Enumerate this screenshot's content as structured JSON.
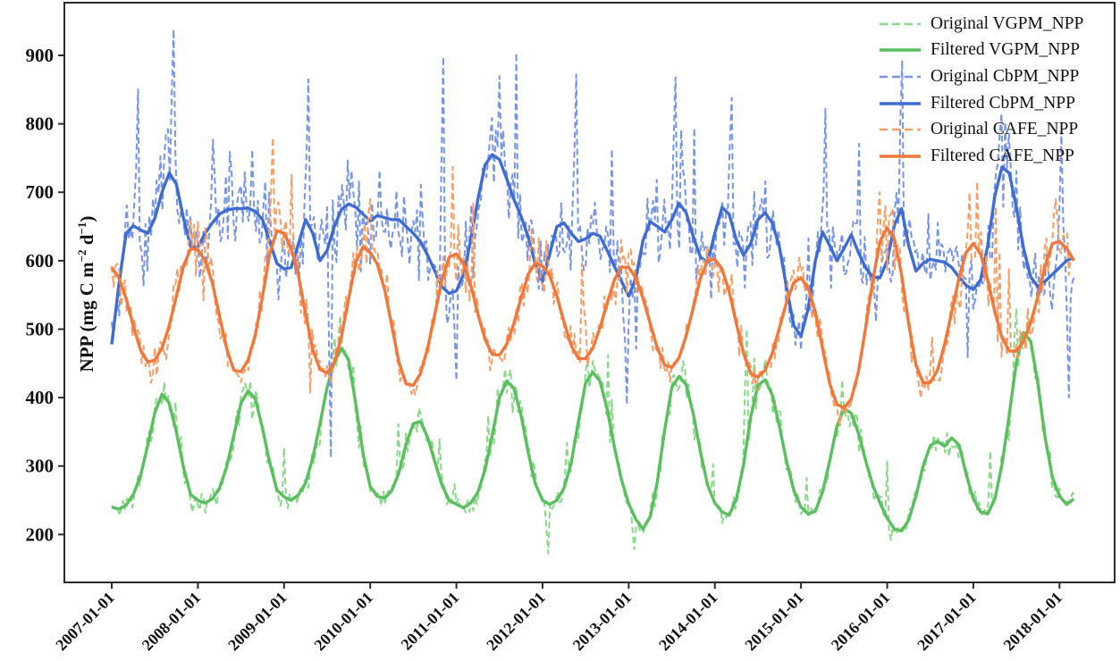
{
  "figure": {
    "background": "#ffffff",
    "spine_color": "#2b2b2b",
    "tick_color": "#2b2b2b",
    "ylabel_parts": {
      "prefix": "NPP (mg C m",
      "sup1": "−2",
      "mid": " d",
      "sup2": "−1",
      "suffix": ")"
    }
  },
  "legend": {
    "entries": [
      {
        "label": "Original VGPM_NPP",
        "model": 0,
        "style": "dashed"
      },
      {
        "label": "Filtered VGPM_NPP",
        "model": 0,
        "style": "solid"
      },
      {
        "label": "Original CbPM_NPP",
        "model": 1,
        "style": "dashed"
      },
      {
        "label": "Filtered CbPM_NPP",
        "model": 1,
        "style": "solid"
      },
      {
        "label": "Original CAFE_NPP",
        "model": 2,
        "style": "dashed"
      },
      {
        "label": "Filtered CAFE_NPP",
        "model": 2,
        "style": "solid"
      }
    ]
  },
  "chart_data": {
    "type": "line",
    "title": "",
    "xlabel": "",
    "ylabel": "NPP (mg C m−2 d−1)",
    "grid": false,
    "legend_position": "upper right",
    "xlim": [
      2006.45,
      2018.64
    ],
    "ylim": [
      130,
      977
    ],
    "start_year": 2007,
    "end_t": 2018.17,
    "samples_per_year_original": 46,
    "y_ticks": [
      200,
      300,
      400,
      500,
      600,
      700,
      800,
      900
    ],
    "x_ticks": [
      {
        "year": 2007,
        "label": "2007-01-01"
      },
      {
        "year": 2008,
        "label": "2008-01-01"
      },
      {
        "year": 2009,
        "label": "2009-01-01"
      },
      {
        "year": 2010,
        "label": "2010-01-01"
      },
      {
        "year": 2011,
        "label": "2011-01-01"
      },
      {
        "year": 2012,
        "label": "2012-01-01"
      },
      {
        "year": 2013,
        "label": "2013-01-01"
      },
      {
        "year": 2014,
        "label": "2014-01-01"
      },
      {
        "year": 2015,
        "label": "2015-01-01"
      },
      {
        "year": 2016,
        "label": "2016-01-01"
      },
      {
        "year": 2017,
        "label": "2017-01-01"
      },
      {
        "year": 2018,
        "label": "2018-01-01"
      }
    ],
    "models": [
      {
        "id": "VGPM",
        "original_label": "Original VGPM_NPP",
        "filtered_label": "Filtered VGPM_NPP",
        "original_color": "#8ad88a",
        "filtered_color": "#5abf5f",
        "sigma": 26,
        "spike_amp": 95,
        "seed": 11,
        "monthly_filtered": [
          240,
          237,
          243,
          258,
          285,
          330,
          378,
          405,
          392,
          350,
          298,
          258,
          250,
          246,
          252,
          268,
          298,
          345,
          392,
          410,
          398,
          355,
          305,
          265,
          255,
          250,
          258,
          275,
          312,
          362,
          415,
          452,
          472,
          455,
          390,
          318,
          270,
          256,
          253,
          264,
          290,
          332,
          362,
          365,
          342,
          306,
          272,
          250,
          244,
          239,
          246,
          262,
          295,
          345,
          400,
          424,
          414,
          374,
          320,
          274,
          250,
          244,
          250,
          268,
          305,
          365,
          422,
          437,
          424,
          383,
          328,
          280,
          245,
          222,
          208,
          226,
          278,
          352,
          415,
          431,
          419,
          376,
          320,
          272,
          246,
          233,
          228,
          252,
          302,
          372,
          418,
          426,
          404,
          358,
          306,
          264,
          240,
          230,
          234,
          262,
          308,
          358,
          384,
          377,
          348,
          308,
          272,
          246,
          224,
          208,
          205,
          221,
          256,
          300,
          330,
          336,
          329,
          341,
          331,
          288,
          252,
          233,
          230,
          252,
          302,
          375,
          452,
          495,
          482,
          420,
          342,
          284,
          256,
          244,
          252
        ],
        "original_anchors": [
          [
            2009.66,
            520
          ],
          [
            2012.06,
            172
          ],
          [
            2013.06,
            178
          ],
          [
            2014.38,
            500
          ],
          [
            2016.04,
            192
          ],
          [
            2017.5,
            530
          ]
        ]
      },
      {
        "id": "CbPM",
        "original_label": "Original CbPM_NPP",
        "filtered_label": "Filtered CbPM_NPP",
        "original_color": "#7795e6",
        "filtered_color": "#3e6cd3",
        "sigma": 62,
        "spike_amp": 190,
        "seed": 73,
        "monthly_filtered": [
          478,
          565,
          640,
          651,
          645,
          640,
          662,
          700,
          728,
          712,
          662,
          620,
          620,
          640,
          655,
          668,
          674,
          676,
          676,
          677,
          672,
          660,
          628,
          596,
          588,
          590,
          625,
          660,
          640,
          600,
          615,
          650,
          675,
          683,
          678,
          668,
          658,
          666,
          663,
          660,
          660,
          650,
          640,
          628,
          608,
          585,
          562,
          552,
          556,
          580,
          630,
          690,
          740,
          755,
          748,
          720,
          690,
          665,
          635,
          595,
          570,
          610,
          650,
          655,
          640,
          628,
          632,
          640,
          636,
          615,
          592,
          570,
          548,
          575,
          630,
          657,
          650,
          642,
          660,
          684,
          670,
          635,
          605,
          598,
          640,
          678,
          668,
          630,
          608,
          625,
          660,
          670,
          655,
          620,
          560,
          505,
          490,
          530,
          600,
          642,
          622,
          600,
          618,
          638,
          612,
          590,
          576,
          575,
          600,
          652,
          676,
          622,
          585,
          596,
          602,
          600,
          598,
          590,
          576,
          564,
          558,
          572,
          622,
          695,
          737,
          728,
          678,
          618,
          576,
          562,
          570,
          580,
          590,
          600,
          605
        ],
        "original_anchors": [
          [
            2007.3,
            850
          ],
          [
            2007.72,
            938
          ],
          [
            2009.28,
            865
          ],
          [
            2009.55,
            312
          ],
          [
            2010.85,
            898
          ],
          [
            2010.99,
            425
          ],
          [
            2011.5,
            870
          ],
          [
            2012.4,
            872
          ],
          [
            2012.98,
            390
          ],
          [
            2013.55,
            868
          ],
          [
            2014.2,
            838
          ],
          [
            2015.28,
            822
          ],
          [
            2016.17,
            893
          ],
          [
            2017.32,
            815
          ],
          [
            2018.02,
            790
          ],
          [
            2018.1,
            400
          ]
        ]
      },
      {
        "id": "CAFE",
        "original_label": "Original CAFE_NPP",
        "filtered_label": "Filtered CAFE_NPP",
        "original_color": "#f79e66",
        "filtered_color": "#f1783a",
        "sigma": 38,
        "spike_amp": 130,
        "seed": 37,
        "monthly_filtered": [
          590,
          575,
          545,
          505,
          470,
          452,
          455,
          472,
          505,
          548,
          592,
          618,
          616,
          600,
          568,
          520,
          472,
          440,
          438,
          455,
          492,
          548,
          610,
          644,
          640,
          618,
          578,
          522,
          470,
          441,
          436,
          450,
          490,
          545,
          598,
          620,
          612,
          595,
          558,
          505,
          452,
          420,
          418,
          435,
          472,
          522,
          572,
          605,
          610,
          596,
          565,
          522,
          485,
          463,
          462,
          478,
          508,
          545,
          580,
          597,
          592,
          578,
          548,
          510,
          476,
          457,
          457,
          472,
          502,
          538,
          572,
          591,
          590,
          575,
          545,
          508,
          472,
          448,
          444,
          458,
          490,
          532,
          575,
          600,
          602,
          588,
          555,
          508,
          465,
          435,
          430,
          440,
          465,
          502,
          540,
          568,
          575,
          560,
          525,
          472,
          420,
          390,
          385,
          398,
          438,
          502,
          572,
          628,
          648,
          632,
          580,
          508,
          448,
          422,
          422,
          440,
          478,
          525,
          575,
          612,
          625,
          610,
          572,
          525,
          488,
          468,
          468,
          482,
          510,
          548,
          592,
          625,
          628,
          618,
          600
        ],
        "original_anchors": [
          [
            2008.88,
            780
          ],
          [
            2010.0,
            690
          ],
          [
            2015.45,
            360
          ],
          [
            2015.92,
            700
          ],
          [
            2016.96,
            700
          ],
          [
            2017.95,
            690
          ]
        ]
      }
    ]
  }
}
